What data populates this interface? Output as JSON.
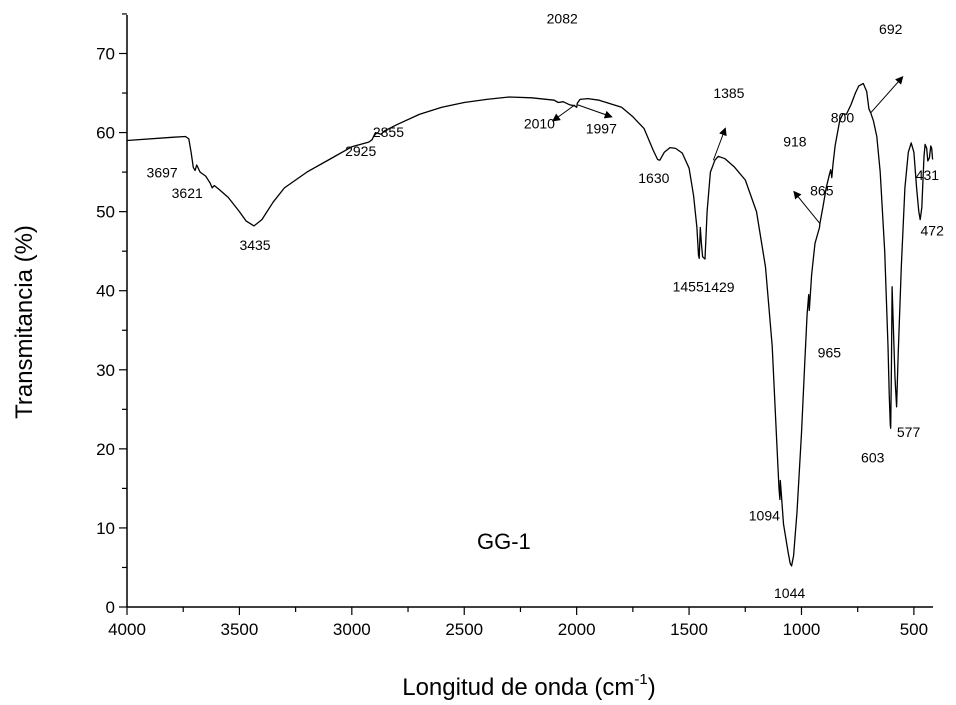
{
  "chart_data": {
    "type": "line",
    "xlabel": "Longitud de onda (cm",
    "xlabel_sup": "-1",
    "xlabel_close": ")",
    "ylabel": "Transmitancia (%)",
    "xlim": [
      4000,
      415
    ],
    "ylim": [
      0,
      75
    ],
    "x_reversed": true,
    "x_ticks": [
      4000,
      3500,
      3000,
      2500,
      2000,
      1500,
      1000,
      500
    ],
    "y_ticks": [
      0,
      10,
      20,
      30,
      40,
      50,
      60,
      70
    ],
    "sample_label": "GG-1",
    "series": [
      {
        "points": [
          [
            4000,
            59
          ],
          [
            3800,
            59.4
          ],
          [
            3740,
            59.5
          ],
          [
            3725,
            59.2
          ],
          [
            3715,
            57.5
          ],
          [
            3705,
            55.6
          ],
          [
            3697,
            55.2
          ],
          [
            3690,
            55.9
          ],
          [
            3675,
            55
          ],
          [
            3650,
            54.5
          ],
          [
            3630,
            53.6
          ],
          [
            3621,
            53
          ],
          [
            3612,
            53.3
          ],
          [
            3590,
            52.8
          ],
          [
            3550,
            51.8
          ],
          [
            3500,
            50
          ],
          [
            3470,
            48.8
          ],
          [
            3435,
            48.2
          ],
          [
            3400,
            49
          ],
          [
            3350,
            51.2
          ],
          [
            3300,
            53
          ],
          [
            3200,
            55
          ],
          [
            3100,
            56.6
          ],
          [
            3000,
            58.2
          ],
          [
            2925,
            58.8
          ],
          [
            2910,
            59.1
          ],
          [
            2895,
            60
          ],
          [
            2870,
            59.8
          ],
          [
            2855,
            60.2
          ],
          [
            2800,
            61
          ],
          [
            2700,
            62.3
          ],
          [
            2600,
            63.2
          ],
          [
            2500,
            63.8
          ],
          [
            2400,
            64.2
          ],
          [
            2300,
            64.5
          ],
          [
            2200,
            64.4
          ],
          [
            2100,
            64.1
          ],
          [
            2082,
            63.8
          ],
          [
            2060,
            63.9
          ],
          [
            2030,
            63.5
          ],
          [
            2010,
            63.4
          ],
          [
            2000,
            63.2
          ],
          [
            1997,
            63.7
          ],
          [
            1985,
            64.2
          ],
          [
            1950,
            64.3
          ],
          [
            1900,
            64.1
          ],
          [
            1800,
            63.2
          ],
          [
            1750,
            62
          ],
          [
            1700,
            60.5
          ],
          [
            1660,
            57.8
          ],
          [
            1640,
            56.6
          ],
          [
            1630,
            56.5
          ],
          [
            1610,
            57.5
          ],
          [
            1585,
            58.1
          ],
          [
            1560,
            58
          ],
          [
            1530,
            57.4
          ],
          [
            1500,
            55.5
          ],
          [
            1480,
            52
          ],
          [
            1465,
            48
          ],
          [
            1458,
            44.5
          ],
          [
            1455,
            44.1
          ],
          [
            1450,
            48
          ],
          [
            1445,
            46
          ],
          [
            1440,
            44.3
          ],
          [
            1429,
            44
          ],
          [
            1420,
            50
          ],
          [
            1405,
            55
          ],
          [
            1385,
            56.5
          ],
          [
            1370,
            57
          ],
          [
            1340,
            56.7
          ],
          [
            1300,
            55.7
          ],
          [
            1250,
            54
          ],
          [
            1200,
            50
          ],
          [
            1160,
            43
          ],
          [
            1130,
            33
          ],
          [
            1110,
            21
          ],
          [
            1100,
            15
          ],
          [
            1096,
            13.6
          ],
          [
            1094,
            16
          ],
          [
            1090,
            14.5
          ],
          [
            1080,
            10.5
          ],
          [
            1060,
            7
          ],
          [
            1050,
            5.5
          ],
          [
            1044,
            5.2
          ],
          [
            1035,
            6.5
          ],
          [
            1020,
            12
          ],
          [
            1000,
            22
          ],
          [
            985,
            31
          ],
          [
            975,
            37
          ],
          [
            968,
            39.5
          ],
          [
            965,
            37.5
          ],
          [
            955,
            42
          ],
          [
            940,
            46
          ],
          [
            920,
            48
          ],
          [
            918,
            48.5
          ],
          [
            905,
            50.5
          ],
          [
            890,
            53
          ],
          [
            875,
            54.8
          ],
          [
            870,
            55.3
          ],
          [
            865,
            54.3
          ],
          [
            860,
            56
          ],
          [
            850,
            58.4
          ],
          [
            830,
            61.5
          ],
          [
            815,
            62.4
          ],
          [
            800,
            62.3
          ],
          [
            780,
            63.5
          ],
          [
            760,
            65
          ],
          [
            745,
            65.9
          ],
          [
            725,
            66.2
          ],
          [
            710,
            65.2
          ],
          [
            700,
            63
          ],
          [
            692,
            62.5
          ],
          [
            680,
            61.5
          ],
          [
            665,
            59.5
          ],
          [
            650,
            55
          ],
          [
            630,
            45
          ],
          [
            615,
            33
          ],
          [
            610,
            27
          ],
          [
            605,
            23
          ],
          [
            603,
            22.6
          ],
          [
            600,
            30
          ],
          [
            597,
            40.5
          ],
          [
            592,
            36
          ],
          [
            584,
            29
          ],
          [
            577,
            25.3
          ],
          [
            570,
            32
          ],
          [
            556,
            43
          ],
          [
            540,
            53
          ],
          [
            525,
            57.5
          ],
          [
            512,
            58.7
          ],
          [
            500,
            57.5
          ],
          [
            488,
            53
          ],
          [
            478,
            50
          ],
          [
            472,
            49
          ],
          [
            465,
            50.5
          ],
          [
            455,
            57
          ],
          [
            450,
            58.5
          ],
          [
            443,
            58
          ],
          [
            438,
            56.4
          ],
          [
            431,
            56.8
          ],
          [
            425,
            58.3
          ],
          [
            421,
            58
          ],
          [
            417,
            56.6
          ]
        ]
      }
    ],
    "annotations": [
      {
        "text": "3697",
        "x": 3697,
        "y": 55.2
      },
      {
        "text": "3621",
        "x": 3621,
        "y": 53
      },
      {
        "text": "3435",
        "x": 3435,
        "y": 48.2
      },
      {
        "text": "2925",
        "x": 2925,
        "y": 58.8
      },
      {
        "text": "2855",
        "x": 2855,
        "y": 60.2
      },
      {
        "text": "2082",
        "x": 2082,
        "y": 63.8
      },
      {
        "text": "2010",
        "x": 2010,
        "y": 63.4
      },
      {
        "text": "1997",
        "x": 1997,
        "y": 63.2
      },
      {
        "text": "1630",
        "x": 1630,
        "y": 56.5
      },
      {
        "text": "1455",
        "x": 1455,
        "y": 44.1
      },
      {
        "text": "1429",
        "x": 1429,
        "y": 44
      },
      {
        "text": "1385",
        "x": 1385,
        "y": 56.5
      },
      {
        "text": "1094",
        "x": 1094,
        "y": 13.6
      },
      {
        "text": "1044",
        "x": 1044,
        "y": 5.2
      },
      {
        "text": "965",
        "x": 965,
        "y": 37.5
      },
      {
        "text": "918",
        "x": 918,
        "y": 48.5
      },
      {
        "text": "865",
        "x": 865,
        "y": 54.3
      },
      {
        "text": "800",
        "x": 800,
        "y": 62.3
      },
      {
        "text": "692",
        "x": 692,
        "y": 62.5
      },
      {
        "text": "603",
        "x": 603,
        "y": 22.6
      },
      {
        "text": "577",
        "x": 577,
        "y": 25.3
      },
      {
        "text": "472",
        "x": 472,
        "y": 49
      },
      {
        "text": "431",
        "x": 431,
        "y": 56.8
      }
    ],
    "line_color": "#000000"
  }
}
